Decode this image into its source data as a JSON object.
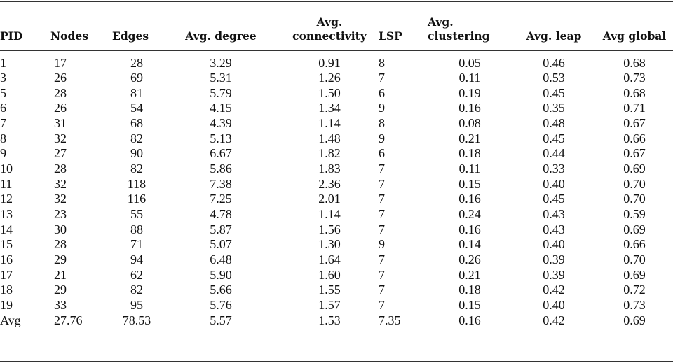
{
  "table": {
    "headers": [
      "PID",
      "Nodes",
      "Edges",
      "Avg. degree",
      "Avg.\nconnectivity",
      "LSP",
      "Avg.\nclustering",
      "Avg. leap",
      "Avg global"
    ],
    "rows": [
      [
        "1",
        "17",
        "28",
        "3.29",
        "0.91",
        "8",
        "0.05",
        "0.46",
        "0.68"
      ],
      [
        "3",
        "26",
        "69",
        "5.31",
        "1.26",
        "7",
        "0.11",
        "0.53",
        "0.73"
      ],
      [
        "5",
        "28",
        "81",
        "5.79",
        "1.50",
        "6",
        "0.19",
        "0.45",
        "0.68"
      ],
      [
        "6",
        "26",
        "54",
        "4.15",
        "1.34",
        "9",
        "0.16",
        "0.35",
        "0.71"
      ],
      [
        "7",
        "31",
        "68",
        "4.39",
        "1.14",
        "8",
        "0.08",
        "0.48",
        "0.67"
      ],
      [
        "8",
        "32",
        "82",
        "5.13",
        "1.48",
        "9",
        "0.21",
        "0.45",
        "0.66"
      ],
      [
        "9",
        "27",
        "90",
        "6.67",
        "1.82",
        "6",
        "0.18",
        "0.44",
        "0.67"
      ],
      [
        "10",
        "28",
        "82",
        "5.86",
        "1.83",
        "7",
        "0.11",
        "0.33",
        "0.69"
      ],
      [
        "11",
        "32",
        "118",
        "7.38",
        "2.36",
        "7",
        "0.15",
        "0.40",
        "0.70"
      ],
      [
        "12",
        "32",
        "116",
        "7.25",
        "2.01",
        "7",
        "0.16",
        "0.45",
        "0.70"
      ],
      [
        "13",
        "23",
        "55",
        "4.78",
        "1.14",
        "7",
        "0.24",
        "0.43",
        "0.59"
      ],
      [
        "14",
        "30",
        "88",
        "5.87",
        "1.56",
        "7",
        "0.16",
        "0.43",
        "0.69"
      ],
      [
        "15",
        "28",
        "71",
        "5.07",
        "1.30",
        "9",
        "0.14",
        "0.40",
        "0.66"
      ],
      [
        "16",
        "29",
        "94",
        "6.48",
        "1.64",
        "7",
        "0.26",
        "0.39",
        "0.70"
      ],
      [
        "17",
        "21",
        "62",
        "5.90",
        "1.60",
        "7",
        "0.21",
        "0.39",
        "0.69"
      ],
      [
        "18",
        "29",
        "82",
        "5.66",
        "1.55",
        "7",
        "0.18",
        "0.42",
        "0.72"
      ],
      [
        "19",
        "33",
        "95",
        "5.76",
        "1.57",
        "7",
        "0.15",
        "0.40",
        "0.73"
      ],
      [
        "Avg",
        "27.76",
        "78.53",
        "5.57",
        "1.53",
        "7.35",
        "0.16",
        "0.42",
        "0.69"
      ]
    ]
  }
}
